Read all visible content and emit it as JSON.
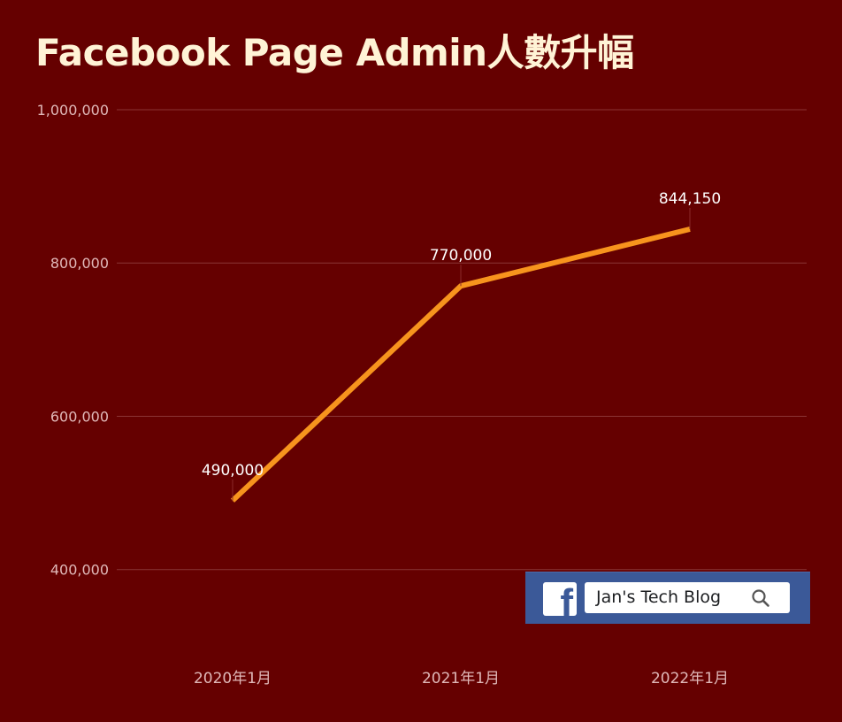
{
  "chart_data": {
    "type": "line",
    "title": "Facebook Page Admin人數升幅",
    "xlabel": "",
    "ylabel": "",
    "categories": [
      "2020年1月",
      "2021年1月",
      "2022年1月"
    ],
    "series": [
      {
        "values": [
          490000,
          770000,
          844150
        ],
        "data_labels": [
          "490,000",
          "770,000",
          "844,150"
        ]
      }
    ],
    "ylim": [
      320000,
      1000000
    ],
    "yticks": [
      400000,
      600000,
      800000,
      1000000
    ],
    "ytick_labels": [
      "400,000",
      "600,000",
      "800,000",
      "1,000,000"
    ],
    "grid": true,
    "legend": "none",
    "colors": {
      "background": "#650000",
      "line": "#f7941d",
      "grid": "#8a3535",
      "axis_text": "#e0b8b8",
      "data_label": "#ffffff",
      "title": "#fff3d6"
    }
  },
  "watermark": {
    "search_text": "Jan's Tech Blog",
    "logo_letter": "f",
    "logo_icon": "facebook-icon",
    "search_icon": "search-icon",
    "brand_color": "#3b5998"
  }
}
